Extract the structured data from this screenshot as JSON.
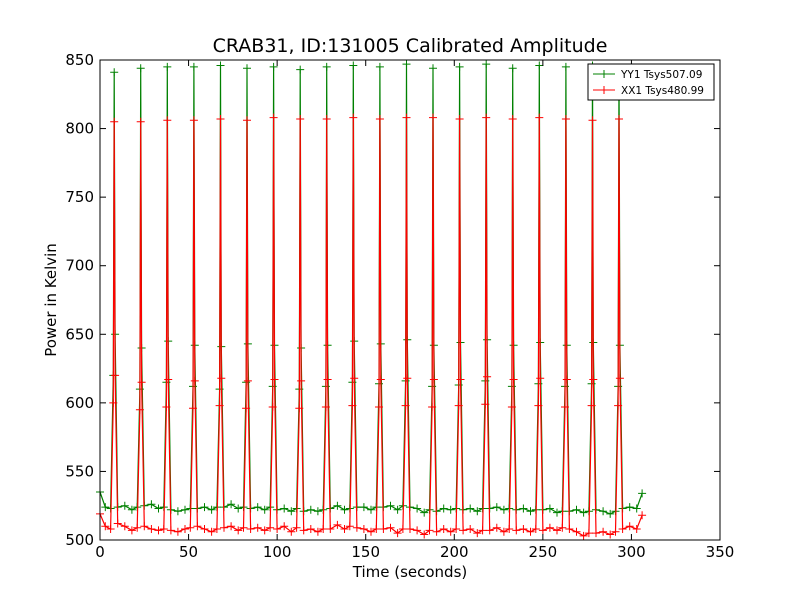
{
  "chart_data": {
    "type": "line",
    "title": "CRAB31, ID:131005 Calibrated Amplitude",
    "xlabel": "Time (seconds)",
    "ylabel": "Power in Kelvin",
    "xlim": [
      0,
      350
    ],
    "ylim": [
      500,
      850
    ],
    "xticks": [
      0,
      50,
      100,
      150,
      200,
      250,
      300,
      350
    ],
    "yticks": [
      500,
      550,
      600,
      650,
      700,
      750,
      800,
      850
    ],
    "grid": false,
    "legend_position": "top-right",
    "series": [
      {
        "name": "YY1 Tsys507.09",
        "color": "#008000",
        "marker": "+",
        "x": [
          0,
          3,
          6,
          7.5,
          8,
          8.5,
          10,
          14,
          18,
          21,
          22.5,
          23,
          23.5,
          25,
          29,
          33,
          36,
          37.5,
          38,
          38.5,
          40,
          44,
          48,
          51,
          52.5,
          53,
          53.5,
          55,
          59,
          63,
          66,
          67.5,
          68,
          68.5,
          70,
          74,
          78,
          81,
          82.5,
          83,
          83.5,
          85,
          89,
          93,
          96,
          97.5,
          98,
          98.5,
          100,
          104,
          108,
          111,
          112.5,
          113,
          113.5,
          115,
          119,
          123,
          126,
          127.5,
          128,
          128.5,
          130,
          134,
          138,
          141,
          142.5,
          143,
          143.5,
          145,
          149,
          153,
          156,
          157.5,
          158,
          158.5,
          160,
          164,
          168,
          171,
          172.5,
          173,
          173.5,
          175,
          179,
          183,
          186,
          187.5,
          188,
          188.5,
          190,
          194,
          198,
          201,
          202.5,
          203,
          203.5,
          205,
          209,
          213,
          216,
          217.5,
          218,
          218.5,
          220,
          224,
          228,
          231,
          232.5,
          233,
          233.5,
          235,
          239,
          243,
          246,
          247.5,
          248,
          248.5,
          250,
          254,
          258,
          261,
          262.5,
          263,
          263.5,
          265,
          269,
          273,
          276,
          277.5,
          278,
          278.5,
          280,
          284,
          288,
          291,
          292.5,
          293,
          293.5,
          295,
          299,
          303,
          306
        ],
        "values": [
          535,
          524,
          523,
          620,
          841,
          650,
          524,
          525,
          522,
          524,
          610,
          844,
          640,
          525,
          526,
          523,
          524,
          615,
          845,
          645,
          522,
          521,
          522,
          523,
          612,
          845,
          642,
          523,
          524,
          522,
          524,
          610,
          846,
          641,
          524,
          526,
          523,
          524,
          615,
          844,
          643,
          523,
          524,
          522,
          524,
          612,
          845,
          642,
          522,
          523,
          521,
          523,
          610,
          843,
          640,
          521,
          522,
          521,
          522,
          612,
          845,
          642,
          523,
          525,
          522,
          523,
          615,
          846,
          645,
          524,
          524,
          522,
          524,
          614,
          845,
          643,
          524,
          525,
          522,
          525,
          616,
          847,
          646,
          524,
          523,
          520,
          522,
          612,
          844,
          642,
          521,
          523,
          522,
          523,
          613,
          845,
          644,
          522,
          523,
          521,
          523,
          616,
          847,
          646,
          523,
          524,
          522,
          523,
          612,
          844,
          642,
          522,
          523,
          521,
          522,
          614,
          846,
          644,
          522,
          523,
          520,
          521,
          612,
          845,
          642,
          521,
          522,
          520,
          521,
          614,
          846,
          644,
          522,
          521,
          519,
          521,
          612,
          844,
          642,
          523,
          524,
          523,
          534
        ]
      },
      {
        "name": "XX1 Tsys480.99",
        "color": "#ff0000",
        "marker": "+",
        "x": [
          0,
          3,
          6,
          7.5,
          8,
          8.5,
          10,
          14,
          18,
          21,
          22.5,
          23,
          23.5,
          25,
          29,
          33,
          36,
          37.5,
          38,
          38.5,
          40,
          44,
          48,
          51,
          52.5,
          53,
          53.5,
          55,
          59,
          63,
          66,
          67.5,
          68,
          68.5,
          70,
          74,
          78,
          81,
          82.5,
          83,
          83.5,
          85,
          89,
          93,
          96,
          97.5,
          98,
          98.5,
          100,
          104,
          108,
          111,
          112.5,
          113,
          113.5,
          115,
          119,
          123,
          126,
          127.5,
          128,
          128.5,
          130,
          134,
          138,
          141,
          142.5,
          143,
          143.5,
          145,
          149,
          153,
          156,
          157.5,
          158,
          158.5,
          160,
          164,
          168,
          171,
          172.5,
          173,
          173.5,
          175,
          179,
          183,
          186,
          187.5,
          188,
          188.5,
          190,
          194,
          198,
          201,
          202.5,
          203,
          203.5,
          205,
          209,
          213,
          216,
          217.5,
          218,
          218.5,
          220,
          224,
          228,
          231,
          232.5,
          233,
          233.5,
          235,
          239,
          243,
          246,
          247.5,
          248,
          248.5,
          250,
          254,
          258,
          261,
          262.5,
          263,
          263.5,
          265,
          269,
          273,
          276,
          277.5,
          278,
          278.5,
          280,
          284,
          288,
          291,
          292.5,
          293,
          293.5,
          295,
          299,
          303,
          306
        ],
        "values": [
          519,
          510,
          508,
          600,
          805,
          620,
          512,
          510,
          507,
          509,
          595,
          805,
          615,
          510,
          508,
          507,
          508,
          597,
          806,
          617,
          507,
          506,
          508,
          509,
          596,
          806,
          616,
          510,
          508,
          506,
          508,
          598,
          807,
          618,
          509,
          510,
          507,
          509,
          596,
          806,
          616,
          508,
          509,
          507,
          509,
          597,
          808,
          617,
          508,
          510,
          506,
          509,
          596,
          807,
          616,
          507,
          508,
          506,
          508,
          597,
          807,
          617,
          508,
          511,
          508,
          510,
          598,
          808,
          618,
          509,
          508,
          506,
          508,
          597,
          807,
          617,
          508,
          509,
          505,
          508,
          598,
          808,
          618,
          508,
          507,
          504,
          507,
          597,
          808,
          617,
          506,
          508,
          506,
          508,
          598,
          807,
          617,
          507,
          508,
          505,
          507,
          599,
          808,
          619,
          507,
          509,
          506,
          508,
          597,
          807,
          617,
          507,
          508,
          506,
          508,
          598,
          808,
          618,
          507,
          509,
          507,
          509,
          597,
          807,
          617,
          508,
          506,
          503,
          505,
          598,
          806,
          617,
          505,
          506,
          504,
          506,
          598,
          807,
          618,
          508,
          510,
          508,
          518
        ]
      }
    ]
  }
}
